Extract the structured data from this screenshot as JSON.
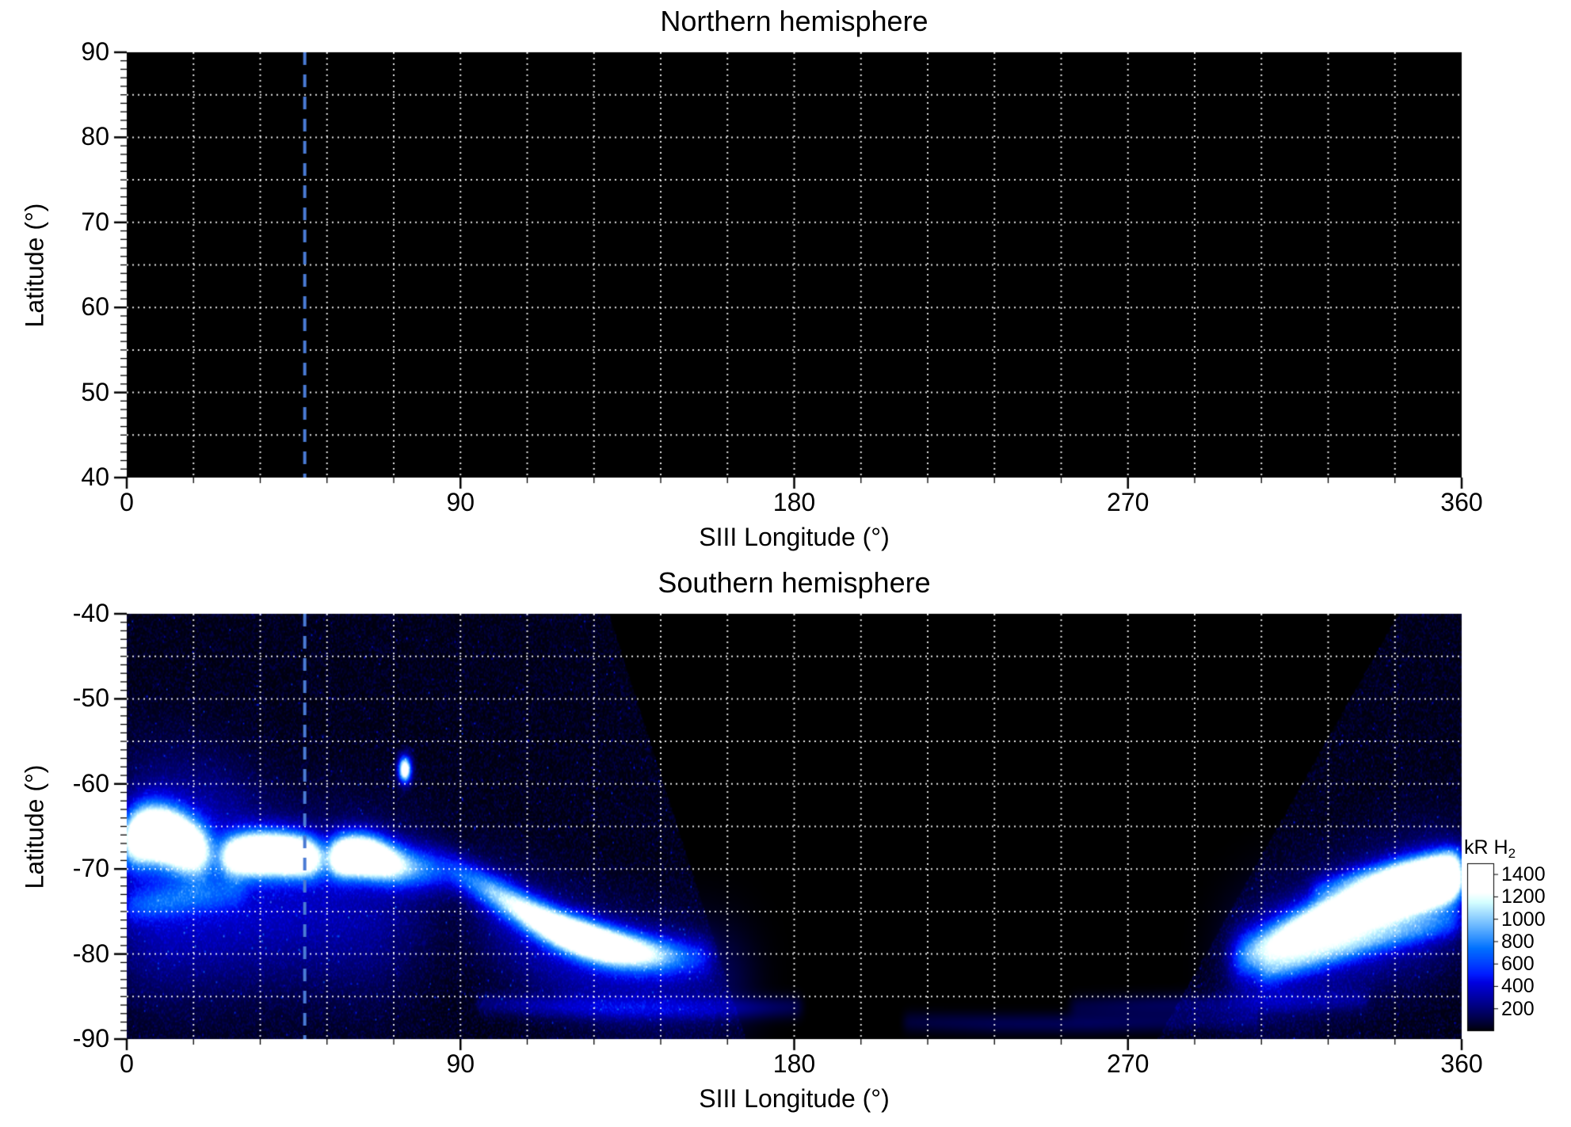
{
  "styles": {
    "background": "#ffffff",
    "text_color": "#000000",
    "panel_background": "#000000",
    "gridline_style": "white dotted",
    "reference_line_color": "#4a7bd4"
  },
  "chart_data": {
    "type": "heatmap",
    "reference_longitude_deg": 48,
    "grid": {
      "lon_step_deg": 18,
      "lat_step_deg": 5
    },
    "panels": [
      {
        "title": "Northern hemisphere",
        "xlabel": "SIII Longitude (°)",
        "ylabel": "Latitude (°)",
        "xlim": [
          0,
          360
        ],
        "ylim": [
          40,
          90
        ],
        "xticks": [
          0,
          90,
          180,
          270,
          360
        ],
        "yticks": [
          90,
          80,
          70,
          60,
          50,
          40
        ],
        "emission": "none visible (panel entirely black)"
      },
      {
        "title": "Southern hemisphere",
        "xlabel": "SIII Longitude (°)",
        "ylabel": "Latitude (°)",
        "xlim": [
          0,
          360
        ],
        "ylim": [
          -90,
          -40
        ],
        "xticks": [
          0,
          90,
          180,
          270,
          360
        ],
        "yticks": [
          -40,
          -50,
          -60,
          -70,
          -80,
          -90
        ],
        "coverage": {
          "west_lon_at_40S_90S": [
            130,
            167
          ],
          "east_lon_at_40S_90S": [
            343,
            278
          ]
        },
        "features": [
          {
            "name": "left-bright-patch",
            "sigma_deg": 2.2,
            "points": [
              [
                0,
                -67,
                1200
              ],
              [
                4,
                -65.8,
                2000
              ],
              [
                9,
                -65.8,
                2200
              ],
              [
                14,
                -66.6,
                2000
              ],
              [
                18,
                -67.6,
                1400
              ],
              [
                23,
                -68.2,
                800
              ]
            ]
          },
          {
            "name": "left-upper-haze",
            "sigma_deg": 5,
            "points": [
              [
                0,
                -62,
                130
              ],
              [
                10,
                -61,
                150
              ],
              [
                20,
                -62,
                130
              ],
              [
                35,
                -63,
                100
              ]
            ]
          },
          {
            "name": "left-diffuse",
            "sigma_deg": 6,
            "points": [
              [
                0,
                -71,
                260
              ],
              [
                12,
                -70,
                300
              ],
              [
                25,
                -70,
                260
              ],
              [
                40,
                -71,
                220
              ],
              [
                55,
                -71.5,
                200
              ],
              [
                70,
                -72,
                180
              ],
              [
                85,
                -74,
                150
              ]
            ]
          },
          {
            "name": "left-lower-haze",
            "sigma_deg": 6,
            "points": [
              [
                0,
                -78,
                190
              ],
              [
                15,
                -78,
                210
              ],
              [
                30,
                -77,
                190
              ],
              [
                45,
                -77,
                160
              ],
              [
                60,
                -78,
                140
              ],
              [
                75,
                -80,
                120
              ]
            ]
          },
          {
            "name": "left-striation",
            "sigma_deg": 1.3,
            "points": [
              [
                0,
                -74.5,
                300
              ],
              [
                8,
                -74,
                340
              ],
              [
                16,
                -73.5,
                300
              ],
              [
                24,
                -73,
                250
              ],
              [
                32,
                -72.6,
                200
              ]
            ]
          },
          {
            "name": "main-oval-west",
            "sigma_deg": 1.7,
            "points": [
              [
                26,
                -68.6,
                900
              ],
              [
                31,
                -68.3,
                1700
              ],
              [
                36,
                -68.2,
                2000
              ],
              [
                41,
                -68.2,
                2050
              ],
              [
                46,
                -68.4,
                1950
              ],
              [
                50,
                -68.6,
                1400
              ],
              [
                53,
                -68.8,
                900
              ]
            ]
          },
          {
            "name": "main-oval-east",
            "sigma_deg": 1.7,
            "points": [
              [
                55,
                -68.8,
                1100
              ],
              [
                58,
                -68.5,
                1900
              ],
              [
                62,
                -68.4,
                2050
              ],
              [
                66,
                -68.6,
                2000
              ],
              [
                70,
                -69.1,
                1500
              ],
              [
                74,
                -69.6,
                1000
              ],
              [
                79,
                -69.9,
                700
              ],
              [
                84,
                -70,
                550
              ],
              [
                88,
                -70.1,
                480
              ]
            ]
          },
          {
            "name": "isolated-spot",
            "sigma_deg": 1.0,
            "points": [
              [
                75,
                -58.3,
                1600
              ]
            ]
          },
          {
            "name": "descending-arc",
            "sigma_deg": 1.5,
            "points": [
              [
                88,
                -70.2,
                550
              ],
              [
                95,
                -71.8,
                700
              ],
              [
                102,
                -73.6,
                900
              ],
              [
                109,
                -75.4,
                1200
              ],
              [
                116,
                -77,
                1600
              ],
              [
                123,
                -78.2,
                1850
              ],
              [
                130,
                -79.1,
                1700
              ],
              [
                137,
                -79.7,
                1250
              ],
              [
                144,
                -80.1,
                800
              ],
              [
                151,
                -80.3,
                450
              ],
              [
                158,
                -80.4,
                260
              ]
            ]
          },
          {
            "name": "descending-halo",
            "sigma_deg": 4.5,
            "points": [
              [
                95,
                -74,
                200
              ],
              [
                110,
                -78,
                300
              ],
              [
                125,
                -81,
                350
              ],
              [
                140,
                -82.5,
                300
              ],
              [
                155,
                -83,
                200
              ],
              [
                168,
                -83.5,
                120
              ]
            ]
          },
          {
            "name": "bottom-streak-west",
            "sigma_deg": 0.9,
            "points": [
              [
                95,
                -85.8,
                160
              ],
              [
                115,
                -86.2,
                220
              ],
              [
                135,
                -86.4,
                240
              ],
              [
                155,
                -86.4,
                220
              ],
              [
                170,
                -86.3,
                180
              ],
              [
                182,
                -86.2,
                120
              ]
            ]
          },
          {
            "name": "bottom-streak-mid",
            "sigma_deg": 0.8,
            "points": [
              [
                210,
                -88,
                90
              ],
              [
                235,
                -88.2,
                130
              ],
              [
                260,
                -88.2,
                140
              ],
              [
                285,
                -88,
                120
              ],
              [
                305,
                -87.8,
                100
              ]
            ]
          },
          {
            "name": "bottom-streak-east",
            "sigma_deg": 0.9,
            "points": [
              [
                255,
                -86.3,
                100
              ],
              [
                275,
                -86.1,
                140
              ],
              [
                295,
                -85.9,
                160
              ],
              [
                315,
                -85.6,
                150
              ],
              [
                335,
                -85.4,
                130
              ]
            ]
          },
          {
            "name": "right-arc-main",
            "sigma_deg": 1.9,
            "points": [
              [
                299,
                -80.5,
                550
              ],
              [
                306,
                -79.5,
                850
              ],
              [
                313,
                -78.2,
                1150
              ],
              [
                320,
                -76.8,
                1450
              ],
              [
                328,
                -75.3,
                1800
              ],
              [
                336,
                -73.9,
                2100
              ],
              [
                344,
                -72.7,
                2250
              ],
              [
                352,
                -71.7,
                2200
              ],
              [
                360,
                -70.8,
                2100
              ]
            ]
          },
          {
            "name": "right-arc-halo",
            "sigma_deg": 5,
            "points": [
              [
                300,
                -82,
                250
              ],
              [
                315,
                -79.5,
                350
              ],
              [
                330,
                -77,
                420
              ],
              [
                345,
                -74.5,
                420
              ],
              [
                360,
                -72.5,
                400
              ]
            ]
          },
          {
            "name": "right-streak-lower",
            "sigma_deg": 1.2,
            "points": [
              [
                306,
                -82.5,
                300
              ],
              [
                318,
                -80.8,
                430
              ],
              [
                330,
                -79.2,
                490
              ],
              [
                342,
                -77.8,
                460
              ],
              [
                354,
                -76.6,
                390
              ],
              [
                360,
                -76.1,
                340
              ]
            ]
          },
          {
            "name": "right-streak-upper",
            "sigma_deg": 1.0,
            "points": [
              [
                320,
                -72.5,
                260
              ],
              [
                332,
                -71,
                330
              ],
              [
                344,
                -69.8,
                340
              ],
              [
                356,
                -68.8,
                310
              ],
              [
                360,
                -68.5,
                290
              ]
            ]
          }
        ]
      }
    ],
    "colorbar": {
      "label_prefix": "kR H",
      "label_sub": "2",
      "ticks": [
        1400,
        1200,
        1000,
        800,
        600,
        400,
        200
      ],
      "min": 0,
      "max": 1500,
      "colormap": "black to blue to white"
    }
  }
}
